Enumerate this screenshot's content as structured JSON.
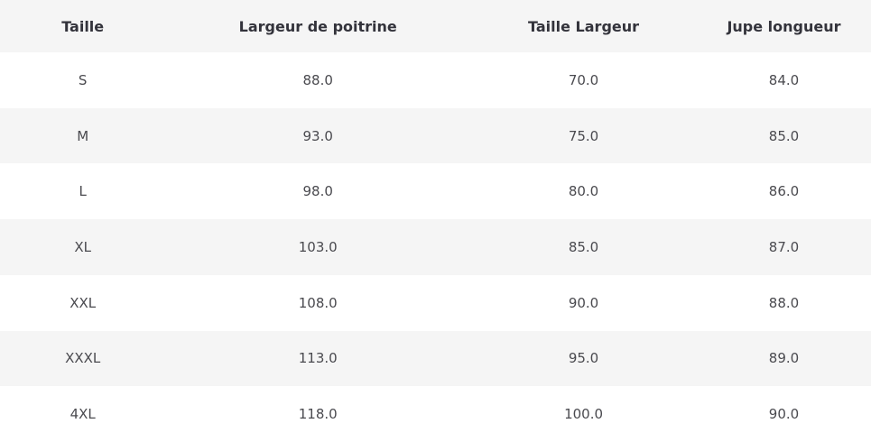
{
  "table": {
    "name": "size-chart",
    "columns": [
      "Taille",
      "Largeur de poitrine",
      "Taille Largeur",
      "Jupe longueur"
    ],
    "rows": [
      [
        "S",
        "88.0",
        "70.0",
        "84.0"
      ],
      [
        "M",
        "93.0",
        "75.0",
        "85.0"
      ],
      [
        "L",
        "98.0",
        "80.0",
        "86.0"
      ],
      [
        "XL",
        "103.0",
        "85.0",
        "87.0"
      ],
      [
        "XXL",
        "108.0",
        "90.0",
        "88.0"
      ],
      [
        "XXXL",
        "113.0",
        "95.0",
        "89.0"
      ],
      [
        "4XL",
        "118.0",
        "100.0",
        "90.0"
      ]
    ]
  },
  "colors": {
    "header_background": "#f5f5f5",
    "stripe_background": "#f5f5f5",
    "row_background": "#ffffff",
    "header_text": "#33333b",
    "body_text": "#4a4a4f"
  }
}
